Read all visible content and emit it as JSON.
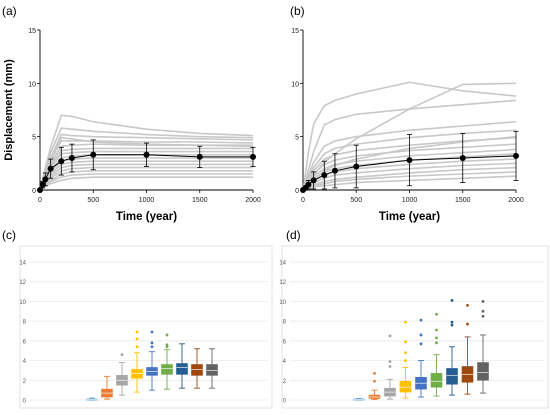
{
  "chart_data": [
    {
      "panel_label": "(a)",
      "type": "line",
      "xlabel": "Time (year)",
      "ylabel": "Displacement (mm)",
      "xlim": [
        0,
        2000
      ],
      "ylim": [
        0,
        15
      ],
      "x_ticks": [
        "0",
        "500",
        "1000",
        "1500",
        "2000"
      ],
      "y_ticks": [
        "0",
        "5",
        "10",
        "15"
      ],
      "x": [
        0,
        25,
        50,
        100,
        200,
        300,
        500,
        1000,
        1500,
        2000
      ],
      "mean": [
        0.0,
        0.5,
        1.0,
        2.0,
        2.7,
        3.0,
        3.3,
        3.3,
        3.1,
        3.1
      ],
      "std": [
        0.0,
        0.3,
        0.6,
        0.9,
        1.3,
        1.3,
        1.4,
        1.1,
        1.0,
        0.9
      ],
      "sample_curves": [
        [
          0,
          1.0,
          2.1,
          4.0,
          7.0,
          6.9,
          6.4,
          5.7,
          5.3,
          5.1
        ],
        [
          0,
          0.9,
          1.8,
          3.5,
          5.8,
          5.7,
          5.5,
          5.2,
          5.0,
          4.9
        ],
        [
          0,
          0.8,
          1.6,
          3.0,
          5.2,
          5.1,
          5.0,
          4.9,
          4.8,
          4.7
        ],
        [
          0,
          0.7,
          1.5,
          2.8,
          4.6,
          4.6,
          4.6,
          4.5,
          4.5,
          4.4
        ],
        [
          0,
          0.7,
          1.3,
          2.5,
          4.1,
          4.2,
          4.3,
          4.2,
          4.2,
          4.1
        ],
        [
          0,
          0.6,
          1.2,
          2.3,
          3.7,
          3.8,
          3.9,
          3.9,
          3.9,
          3.9
        ],
        [
          0,
          0.6,
          1.1,
          2.1,
          3.4,
          3.5,
          3.6,
          3.6,
          3.6,
          3.6
        ],
        [
          0,
          0.5,
          1.0,
          1.9,
          3.0,
          3.2,
          3.3,
          3.3,
          3.3,
          3.3
        ],
        [
          0,
          0.5,
          0.9,
          1.7,
          2.7,
          2.9,
          3.0,
          3.0,
          3.0,
          3.0
        ],
        [
          0,
          0.4,
          0.8,
          1.5,
          2.4,
          2.6,
          2.7,
          2.7,
          2.7,
          2.7
        ],
        [
          0,
          0.4,
          0.7,
          1.3,
          2.1,
          2.3,
          2.4,
          2.4,
          2.4,
          2.4
        ],
        [
          0,
          0.3,
          0.6,
          1.1,
          1.8,
          2.0,
          2.1,
          2.1,
          2.1,
          2.1
        ],
        [
          0,
          0.3,
          0.5,
          0.9,
          1.5,
          1.7,
          1.8,
          1.8,
          1.8,
          1.8
        ],
        [
          0,
          0.2,
          0.4,
          0.8,
          1.2,
          1.4,
          1.5,
          1.5,
          1.5,
          1.5
        ],
        [
          0,
          0.2,
          0.3,
          0.6,
          0.9,
          1.1,
          1.2,
          1.2,
          1.2,
          1.2
        ],
        [
          0,
          0.6,
          1.2,
          2.6,
          4.9,
          4.8,
          4.5,
          4.3,
          4.2,
          4.2
        ]
      ]
    },
    {
      "panel_label": "(b)",
      "type": "line",
      "xlabel": "Time (year)",
      "ylabel": "",
      "xlim": [
        0,
        2000
      ],
      "ylim": [
        0,
        15
      ],
      "x_ticks": [
        "0",
        "500",
        "1000",
        "1500",
        "2000"
      ],
      "y_ticks": [
        "0",
        "5",
        "10",
        "15"
      ],
      "x": [
        0,
        25,
        50,
        100,
        200,
        300,
        500,
        1000,
        1500,
        2000
      ],
      "mean": [
        0.0,
        0.2,
        0.5,
        0.9,
        1.4,
        1.8,
        2.2,
        2.8,
        3.0,
        3.2
      ],
      "std": [
        0.0,
        0.2,
        0.4,
        0.8,
        1.3,
        1.6,
        2.0,
        2.4,
        2.3,
        2.3
      ],
      "sample_curves": [
        [
          0,
          1.6,
          3.5,
          6.2,
          7.9,
          8.4,
          9.0,
          10.1,
          9.3,
          8.8
        ],
        [
          0,
          0.8,
          1.8,
          3.6,
          6.1,
          6.6,
          7.1,
          7.6,
          8.0,
          8.4
        ],
        [
          0,
          0.3,
          0.7,
          1.4,
          2.6,
          3.4,
          4.8,
          7.6,
          9.9,
          10.0
        ],
        [
          0,
          0.6,
          1.3,
          2.6,
          4.1,
          4.6,
          5.0,
          5.6,
          6.0,
          6.4
        ],
        [
          0,
          0.5,
          1.1,
          2.1,
          3.4,
          3.9,
          4.3,
          4.9,
          5.3,
          5.6
        ],
        [
          0,
          0.4,
          0.9,
          1.8,
          2.9,
          3.3,
          3.7,
          4.2,
          4.6,
          4.9
        ],
        [
          0,
          0.4,
          0.8,
          1.5,
          2.4,
          2.8,
          3.2,
          3.7,
          4.0,
          4.3
        ],
        [
          0,
          0.3,
          0.7,
          1.3,
          2.0,
          2.4,
          2.7,
          3.2,
          3.5,
          3.8
        ],
        [
          0,
          0.3,
          0.6,
          1.1,
          1.7,
          2.0,
          2.3,
          2.8,
          3.1,
          3.4
        ],
        [
          0,
          0.2,
          0.5,
          0.9,
          1.4,
          1.7,
          2.0,
          2.4,
          2.7,
          2.9
        ],
        [
          0,
          0.2,
          0.4,
          0.7,
          1.1,
          1.4,
          1.6,
          2.0,
          2.3,
          2.5
        ],
        [
          0,
          0.1,
          0.3,
          0.5,
          0.8,
          1.0,
          1.2,
          1.6,
          1.9,
          2.1
        ],
        [
          0,
          0.1,
          0.2,
          0.4,
          0.6,
          0.8,
          1.0,
          1.3,
          1.5,
          1.7
        ],
        [
          0,
          0.1,
          0.1,
          0.3,
          0.4,
          0.5,
          0.7,
          0.9,
          1.1,
          1.3
        ],
        [
          0,
          0.2,
          0.4,
          0.9,
          1.8,
          2.3,
          2.9,
          3.9,
          4.5,
          5.0
        ]
      ]
    },
    {
      "panel_label": "(c)",
      "type": "box",
      "ylim": [
        0,
        14
      ],
      "y_ticks": [
        "0",
        "2",
        "4",
        "6",
        "8",
        "10",
        "12",
        "14"
      ],
      "boxes": [
        {
          "color": "#5B9BD5",
          "whisker_low": 0.0,
          "q1": 0.0,
          "median": 0.05,
          "q3": 0.1,
          "whisker_high": 0.2,
          "outliers": []
        },
        {
          "color": "#ED7D31",
          "whisker_low": 0.1,
          "q1": 0.3,
          "median": 0.7,
          "q3": 1.1,
          "whisker_high": 2.4,
          "outliers": []
        },
        {
          "color": "#A5A5A5",
          "whisker_low": 0.5,
          "q1": 1.5,
          "median": 2.0,
          "q3": 2.5,
          "whisker_high": 3.8,
          "outliers": [
            4.6
          ]
        },
        {
          "color": "#FFC000",
          "whisker_low": 0.8,
          "q1": 2.2,
          "median": 2.7,
          "q3": 3.1,
          "whisker_high": 4.8,
          "outliers": [
            6.9,
            6.2,
            5.4
          ]
        },
        {
          "color": "#4472C4",
          "whisker_low": 1.0,
          "q1": 2.5,
          "median": 2.9,
          "q3": 3.3,
          "whisker_high": 4.9,
          "outliers": [
            6.9,
            5.8,
            5.4
          ]
        },
        {
          "color": "#70AD47",
          "whisker_low": 1.1,
          "q1": 2.6,
          "median": 3.2,
          "q3": 3.6,
          "whisker_high": 5.1,
          "outliers": [
            6.6,
            5.6,
            5.4
          ]
        },
        {
          "color": "#255E91",
          "whisker_low": 1.2,
          "q1": 2.6,
          "median": 3.3,
          "q3": 3.7,
          "whisker_high": 5.7,
          "outliers": []
        },
        {
          "color": "#9E480E",
          "whisker_low": 1.2,
          "q1": 2.5,
          "median": 3.1,
          "q3": 3.6,
          "whisker_high": 5.2,
          "outliers": []
        },
        {
          "color": "#636363",
          "whisker_low": 1.2,
          "q1": 2.5,
          "median": 3.0,
          "q3": 3.6,
          "whisker_high": 5.2,
          "outliers": []
        }
      ]
    },
    {
      "panel_label": "(d)",
      "type": "box",
      "ylim": [
        0,
        14
      ],
      "y_ticks": [
        "0",
        "2",
        "4",
        "6",
        "8",
        "10",
        "12",
        "14"
      ],
      "boxes": [
        {
          "color": "#5B9BD5",
          "whisker_low": 0.0,
          "q1": 0.0,
          "median": 0.05,
          "q3": 0.1,
          "whisker_high": 0.15,
          "outliers": []
        },
        {
          "color": "#ED7D31",
          "whisker_low": 0.05,
          "q1": 0.15,
          "median": 0.3,
          "q3": 0.5,
          "whisker_high": 1.0,
          "outliers": [
            2.7,
            1.9
          ]
        },
        {
          "color": "#A5A5A5",
          "whisker_low": 0.1,
          "q1": 0.4,
          "median": 0.8,
          "q3": 1.2,
          "whisker_high": 2.1,
          "outliers": [
            6.5,
            3.9,
            3.4
          ]
        },
        {
          "color": "#FFC000",
          "whisker_low": 0.2,
          "q1": 0.8,
          "median": 1.3,
          "q3": 1.9,
          "whisker_high": 3.3,
          "outliers": [
            7.9,
            5.9,
            4.8,
            4.0
          ]
        },
        {
          "color": "#4472C4",
          "whisker_low": 0.3,
          "q1": 1.1,
          "median": 1.7,
          "q3": 2.3,
          "whisker_high": 4.0,
          "outliers": [
            8.1,
            6.6,
            5.7
          ]
        },
        {
          "color": "#70AD47",
          "whisker_low": 0.4,
          "q1": 1.3,
          "median": 1.9,
          "q3": 2.7,
          "whisker_high": 4.6,
          "outliers": [
            8.7,
            7.1,
            6.3,
            5.8
          ]
        },
        {
          "color": "#255E91",
          "whisker_low": 0.5,
          "q1": 1.6,
          "median": 2.5,
          "q3": 3.2,
          "whisker_high": 5.4,
          "outliers": [
            10.1,
            7.9,
            7.6
          ]
        },
        {
          "color": "#9E480E",
          "whisker_low": 0.6,
          "q1": 1.8,
          "median": 2.6,
          "q3": 3.4,
          "whisker_high": 6.4,
          "outliers": [
            9.6,
            7.7
          ]
        },
        {
          "color": "#636363",
          "whisker_low": 0.7,
          "q1": 2.0,
          "median": 2.8,
          "q3": 3.8,
          "whisker_high": 6.6,
          "outliers": [
            10.0,
            9.0,
            8.5
          ]
        }
      ]
    }
  ]
}
